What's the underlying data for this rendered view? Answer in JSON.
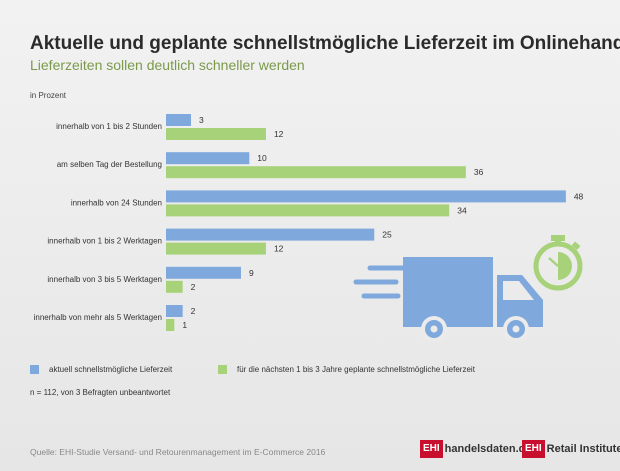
{
  "header": {
    "title": "Aktuelle und geplante schnellstmögliche Lieferzeit im Onlinehandel",
    "subtitle": "Lieferzeiten sollen deutlich schneller werden",
    "unit": "in Prozent"
  },
  "colors": {
    "current": "#7fa8dc",
    "planned": "#a8d27a",
    "illustration": "#7fa8dc",
    "stopwatch": "#a8d27a"
  },
  "chart_data": {
    "type": "bar",
    "orientation": "horizontal",
    "title": "Aktuelle und geplante schnellstmögliche Lieferzeit im Onlinehandel",
    "subtitle": "Lieferzeiten sollen deutlich schneller werden",
    "unit": "in Prozent",
    "categories": [
      "innerhalb von 1 bis 2 Stunden",
      "am selben Tag der Bestellung",
      "innerhalb von 24 Stunden",
      "innerhalb von 1 bis 2 Werktagen",
      "innerhalb von 3 bis 5 Werktagen",
      "innerhalb von mehr als 5 Werktagen"
    ],
    "series": [
      {
        "name": "aktuell schnellstmögliche Lieferzeit",
        "values": [
          3,
          10,
          48,
          25,
          9,
          2
        ]
      },
      {
        "name": "für die nächsten 1 bis 3 Jahre geplante schnellstmögliche Lieferzeit",
        "values": [
          12,
          36,
          34,
          12,
          2,
          1
        ]
      }
    ],
    "xlim": [
      0,
      48
    ],
    "legend": "bottom"
  },
  "legend": {
    "current": "aktuell schnellstmögliche Lieferzeit",
    "planned": "für die nächsten 1 bis 3 Jahre geplante schnellstmögliche Lieferzeit"
  },
  "footer": {
    "note": "n = 112, von 3 Befragten unbeantwortet",
    "source": "Quelle: EHI-Studie Versand- und Retourenmanagement im E-Commerce 2016",
    "logo1_box": "EHI",
    "logo1_text": "handelsdaten.de",
    "logo2_box": "EHI",
    "logo2_text": "Retail Institute",
    "logo2_reg": "®"
  },
  "icons": {
    "truck": "delivery-truck-icon",
    "stopwatch": "stopwatch-icon"
  }
}
